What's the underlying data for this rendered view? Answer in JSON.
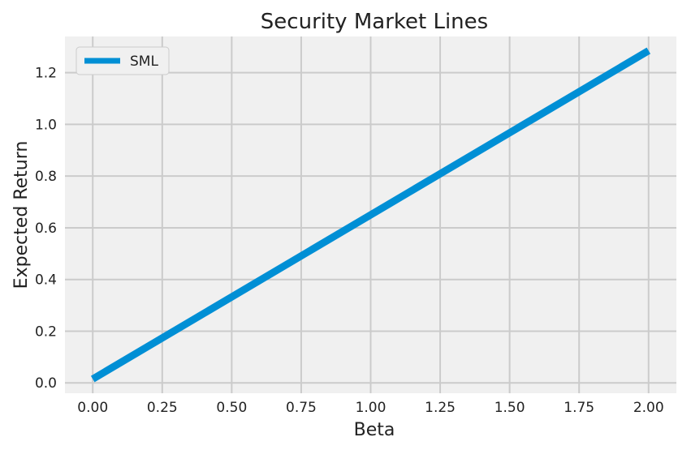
{
  "chart_data": {
    "type": "line",
    "title": "Security Market Lines",
    "xlabel": "Beta",
    "ylabel": "Expected Return",
    "xlim": [
      -0.1,
      2.1
    ],
    "ylim": [
      -0.04,
      1.34
    ],
    "x_ticks": [
      "0.00",
      "0.25",
      "0.50",
      "0.75",
      "1.00",
      "1.25",
      "1.50",
      "1.75",
      "2.00"
    ],
    "y_ticks": [
      "0.0",
      "0.2",
      "0.4",
      "0.6",
      "0.8",
      "1.0",
      "1.2"
    ],
    "grid": true,
    "legend_position": "top-left",
    "series": [
      {
        "name": "SML",
        "color": "#008fd5",
        "x": [
          0.0,
          2.0
        ],
        "y": [
          0.015,
          1.285
        ]
      }
    ]
  }
}
